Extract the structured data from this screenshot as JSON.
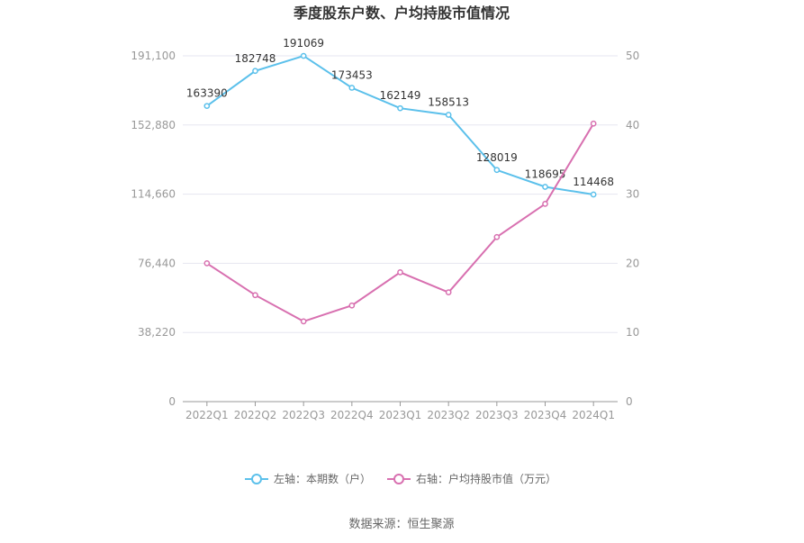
{
  "chart_data": {
    "type": "line",
    "title": "季度股东户数、户均持股市值情况",
    "categories": [
      "2022Q1",
      "2022Q2",
      "2022Q3",
      "2022Q4",
      "2023Q1",
      "2023Q2",
      "2023Q3",
      "2023Q4",
      "2024Q1"
    ],
    "left_axis": {
      "ticks": [
        "0",
        "38,220",
        "76,440",
        "114,660",
        "152,880",
        "191,100"
      ],
      "ylim": [
        0,
        191100
      ]
    },
    "right_axis": {
      "ticks": [
        "0",
        "10",
        "20",
        "30",
        "40",
        "50"
      ],
      "ylim": [
        0,
        50
      ]
    },
    "series": [
      {
        "name": "左轴：本期数（户）",
        "axis": "left",
        "color": "#5bc0eb",
        "values": [
          163390,
          182748,
          191069,
          173453,
          162149,
          158513,
          128019,
          118695,
          114468
        ],
        "labels": [
          "163390",
          "182748",
          "191069",
          "173453",
          "162149",
          "158513",
          "128019",
          "118695",
          "114468"
        ]
      },
      {
        "name": "右轴：户均持股市值（万元）",
        "axis": "right",
        "color": "#d870b0",
        "values": [
          20.0,
          15.4,
          11.6,
          13.9,
          18.7,
          15.8,
          23.8,
          28.6,
          40.2
        ]
      }
    ],
    "grid": true,
    "legend": "bottom-center"
  },
  "source_text": "数据来源：恒生聚源"
}
